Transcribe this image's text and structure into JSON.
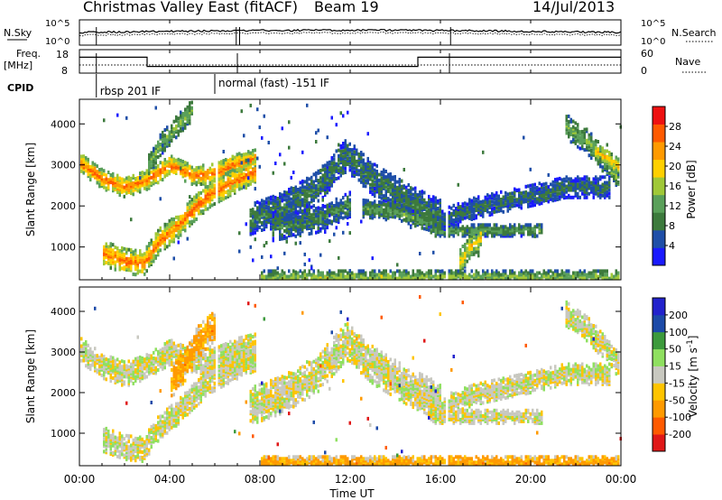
{
  "header": {
    "title": "Christmas Valley East (fitACF)",
    "beam": "Beam 19",
    "date": "14/Jul/2013"
  },
  "noise_panel": {
    "left_label": "N.Sky",
    "right_label": "N.Search",
    "left_ticks": [
      "10^5",
      "10^0"
    ],
    "right_ticks": [
      "10^5",
      "10^0"
    ]
  },
  "freq_panel": {
    "left_label_1": "Freq.",
    "left_label_2": "[MHz]",
    "right_label": "Nave",
    "left_ticks": [
      "18",
      "8"
    ],
    "right_ticks": [
      "60",
      "0"
    ]
  },
  "cpid_panel": {
    "label": "CPID",
    "entries": [
      {
        "text": "rbsp 201 IF",
        "start_hour": 0.75
      },
      {
        "text": "normal (fast) -151 IF",
        "start_hour": 6.0
      }
    ]
  },
  "x_axis": {
    "label": "Time UT",
    "ticks": [
      "00:00",
      "04:00",
      "08:00",
      "12:00",
      "16:00",
      "20:00",
      "00:00"
    ]
  },
  "colors": {
    "power": [
      "#1a1aff",
      "#1f4fa8",
      "#3d7a3d",
      "#5aa05a",
      "#a0c838",
      "#ffd000",
      "#ff9a00",
      "#ff5a00",
      "#ee1111"
    ],
    "velocity": [
      "#e01818",
      "#ff5a00",
      "#ff9a00",
      "#ffc400",
      "#c8c8c0",
      "#c8c8c0",
      "#8fe060",
      "#3c9a3c",
      "#1c4aa8",
      "#2222cc"
    ]
  },
  "chart_data": [
    {
      "type": "heatmap",
      "name": "power",
      "xlabel": "Time UT",
      "ylabel": "Slant Range [km]",
      "xlim": [
        0,
        24
      ],
      "ylim": [
        200,
        4600
      ],
      "yticks": [
        1000,
        2000,
        3000,
        4000
      ],
      "colorbar": {
        "label": "Power [dB]",
        "ticks": [
          "4",
          "8",
          "12",
          "16",
          "20",
          "24",
          "28"
        ],
        "range": [
          0,
          32
        ]
      },
      "bands": [
        {
          "hours": [
            0.0,
            1.0,
            2.0,
            3.0,
            4.0,
            5.0,
            6.0,
            7.0,
            7.8
          ],
          "ranges": [
            3100,
            2700,
            2500,
            2700,
            3050,
            2800,
            2850,
            3100,
            3200
          ],
          "width": 240,
          "value": 26
        },
        {
          "hours": [
            1.0,
            2.0,
            2.8,
            3.5,
            4.3,
            5.0,
            5.8,
            6.8,
            7.8
          ],
          "ranges": [
            900,
            700,
            650,
            1200,
            1550,
            1950,
            2350,
            2650,
            2900
          ],
          "width": 300,
          "value": 26
        },
        {
          "hours": [
            3.0,
            3.5,
            4.3,
            5.0
          ],
          "ranges": [
            3000,
            3500,
            4000,
            4400
          ],
          "width": 250,
          "value": 14
        },
        {
          "hours": [
            7.5,
            9.0,
            10.5,
            11.8,
            13.0,
            14.5,
            16.0
          ],
          "ranges": [
            1700,
            2000,
            2500,
            3300,
            2700,
            2200,
            1800
          ],
          "width": 400,
          "value": 9
        },
        {
          "hours": [
            8.5,
            10.5,
            12.0
          ],
          "ranges": [
            1500,
            1700,
            2100
          ],
          "width": 300,
          "value": 10
        },
        {
          "hours": [
            12.5,
            14.0,
            15.0,
            16.0
          ],
          "ranges": [
            2000,
            1900,
            1700,
            1550
          ],
          "width": 220,
          "value": 12
        },
        {
          "hours": [
            15.5,
            17.0,
            19.0,
            20.5
          ],
          "ranges": [
            1450,
            1450,
            1450,
            1450
          ],
          "width": 140,
          "value": 12
        },
        {
          "hours": [
            16.0,
            17.5,
            20.0,
            21.5,
            23.5
          ],
          "ranges": [
            1700,
            2000,
            2300,
            2500,
            2500
          ],
          "width": 250,
          "value": 8
        },
        {
          "hours": [
            16.8,
            17.2,
            17.8
          ],
          "ranges": [
            650,
            1000,
            1300
          ],
          "width": 300,
          "value": 20
        },
        {
          "hours": [
            21.5,
            22.5,
            23.3,
            23.9
          ],
          "ranges": [
            4000,
            3600,
            3100,
            2700
          ],
          "width": 300,
          "value": 14
        },
        {
          "hours": [
            22.8,
            23.4,
            23.9
          ],
          "ranges": [
            3400,
            3200,
            3000
          ],
          "width": 200,
          "value": 22
        },
        {
          "hours": [
            8.0,
            12.0,
            16.0,
            20.0,
            23.9
          ],
          "ranges": [
            300,
            300,
            300,
            300,
            300
          ],
          "width": 160,
          "value": 16
        }
      ]
    },
    {
      "type": "heatmap",
      "name": "velocity",
      "xlabel": "Time UT",
      "ylabel": "Slant Range [km]",
      "xlim": [
        0,
        24
      ],
      "ylim": [
        200,
        4600
      ],
      "yticks": [
        1000,
        2000,
        3000,
        4000
      ],
      "colorbar": {
        "label": "Velocity [m s^-1]",
        "ticks": [
          "-200",
          "-100",
          "-50",
          "-15",
          "15",
          "50",
          "100",
          "200"
        ],
        "range": [
          -250,
          250
        ]
      },
      "bands": [
        {
          "hours": [
            0.0,
            1.0,
            2.0,
            3.0,
            4.0,
            5.0,
            6.0,
            7.0,
            7.8
          ],
          "ranges": [
            3100,
            2700,
            2500,
            2700,
            3050,
            2800,
            2850,
            3100,
            3200
          ],
          "width": 300,
          "value": 0
        },
        {
          "hours": [
            1.0,
            2.0,
            2.8,
            3.5,
            4.3,
            5.0,
            5.8,
            6.8,
            7.8
          ],
          "ranges": [
            900,
            700,
            650,
            1200,
            1550,
            1950,
            2350,
            2650,
            2900
          ],
          "width": 300,
          "value": 0
        },
        {
          "hours": [
            4.0,
            4.6,
            5.2,
            6.0
          ],
          "ranges": [
            2300,
            2700,
            3300,
            3700
          ],
          "width": 400,
          "value": -50
        },
        {
          "hours": [
            7.5,
            9.0,
            10.5,
            11.8,
            13.0,
            14.5,
            16.0
          ],
          "ranges": [
            1700,
            2000,
            2500,
            3300,
            2700,
            2200,
            1800
          ],
          "width": 450,
          "value": 0
        },
        {
          "hours": [
            15.5,
            17.0,
            19.0,
            20.5
          ],
          "ranges": [
            1450,
            1450,
            1450,
            1450
          ],
          "width": 160,
          "value": 0
        },
        {
          "hours": [
            16.0,
            17.5,
            20.0,
            21.5,
            23.5
          ],
          "ranges": [
            1700,
            2000,
            2300,
            2500,
            2500
          ],
          "width": 250,
          "value": 0
        },
        {
          "hours": [
            21.5,
            22.5,
            23.3,
            23.9
          ],
          "ranges": [
            4000,
            3600,
            3100,
            2700
          ],
          "width": 300,
          "value": 0
        },
        {
          "hours": [
            8.0,
            12.0,
            16.0,
            20.0,
            23.9
          ],
          "ranges": [
            300,
            300,
            300,
            300,
            300
          ],
          "width": 200,
          "value": -50
        }
      ]
    }
  ]
}
